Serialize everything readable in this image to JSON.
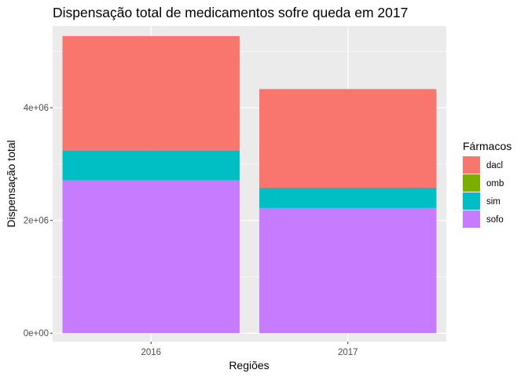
{
  "chart_data": {
    "type": "bar",
    "stacked": true,
    "title": "Dispensação total de medicamentos sofre queda em 2017",
    "xlabel": "Regiões",
    "ylabel": "Dispensação total",
    "categories": [
      "2016",
      "2017"
    ],
    "ylim": [
      -150000,
      5450000
    ],
    "yticks": [
      0,
      2000000,
      4000000
    ],
    "ytick_labels": [
      "0e+00",
      "2e+06",
      "4e+06"
    ],
    "grid": true,
    "legend": {
      "title": "Fármacos",
      "position": "right"
    },
    "series": [
      {
        "name": "dacl",
        "color": "#F8766D",
        "values": [
          2030000,
          1750000
        ]
      },
      {
        "name": "omb",
        "color": "#7CAE00",
        "values": [
          0,
          0
        ]
      },
      {
        "name": "sim",
        "color": "#00BFC4",
        "values": [
          530000,
          360000
        ]
      },
      {
        "name": "sofo",
        "color": "#C77CFF",
        "values": [
          2710000,
          2220000
        ]
      }
    ],
    "stack_order_bottom_to_top": [
      "sofo",
      "sim",
      "omb",
      "dacl"
    ],
    "panel_background": "#EBEBEB",
    "grid_color": "#FFFFFF"
  }
}
